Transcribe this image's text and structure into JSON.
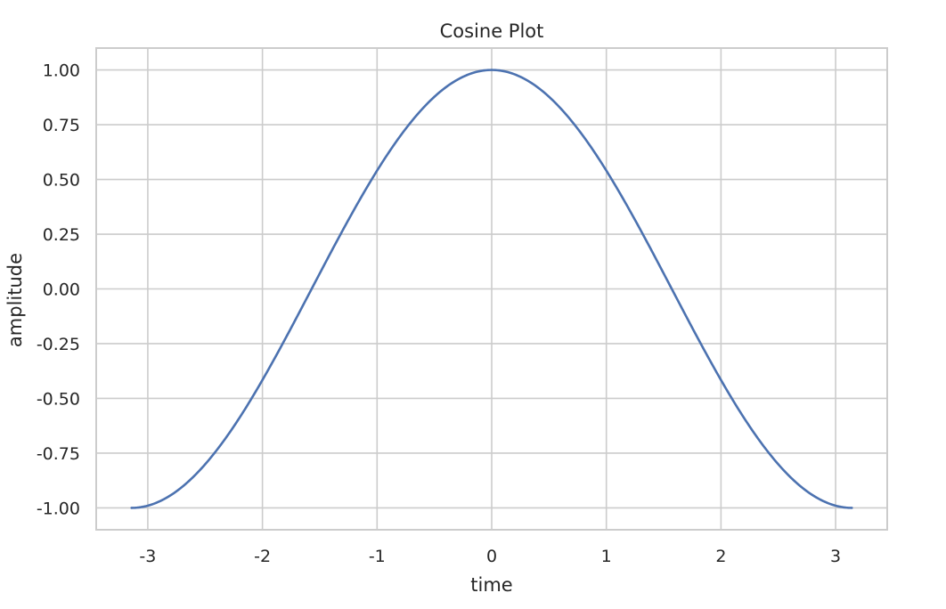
{
  "chart_data": {
    "type": "line",
    "title": "Cosine Plot",
    "xlabel": "time",
    "ylabel": "amplitude",
    "xlim": [
      -3.45,
      3.45
    ],
    "ylim": [
      -1.1,
      1.1
    ],
    "xticks": [
      {
        "value": -3,
        "label": "-3"
      },
      {
        "value": -2,
        "label": "-2"
      },
      {
        "value": -1,
        "label": "-1"
      },
      {
        "value": 0,
        "label": "0"
      },
      {
        "value": 1,
        "label": "1"
      },
      {
        "value": 2,
        "label": "2"
      },
      {
        "value": 3,
        "label": "3"
      }
    ],
    "yticks": [
      {
        "value": 1.0,
        "label": "1.00"
      },
      {
        "value": 0.75,
        "label": "0.75"
      },
      {
        "value": 0.5,
        "label": "0.50"
      },
      {
        "value": 0.25,
        "label": "0.25"
      },
      {
        "value": 0.0,
        "label": "0.00"
      },
      {
        "value": -0.25,
        "label": "-0.25"
      },
      {
        "value": -0.5,
        "label": "-0.50"
      },
      {
        "value": -0.75,
        "label": "-0.75"
      },
      {
        "value": -1.0,
        "label": "-1.00"
      }
    ],
    "grid": true,
    "series": [
      {
        "function": "cos(x)",
        "domain": [
          -3.1416,
          3.1416
        ],
        "color": "#4c72b0",
        "x": [
          -3.1416,
          -3.0,
          -2.75,
          -2.5,
          -2.25,
          -2.0,
          -1.75,
          -1.5,
          -1.25,
          -1.0,
          -0.75,
          -0.5,
          -0.25,
          0.0,
          0.25,
          0.5,
          0.75,
          1.0,
          1.25,
          1.5,
          1.75,
          2.0,
          2.25,
          2.5,
          2.75,
          3.0,
          3.1416
        ],
        "y": [
          -1.0,
          -0.99,
          -0.924,
          -0.801,
          -0.628,
          -0.416,
          -0.178,
          0.071,
          0.315,
          0.54,
          0.732,
          0.878,
          0.969,
          1.0,
          0.969,
          0.878,
          0.732,
          0.54,
          0.315,
          0.071,
          -0.178,
          -0.416,
          -0.628,
          -0.801,
          -0.924,
          -0.99,
          -1.0
        ]
      }
    ]
  }
}
